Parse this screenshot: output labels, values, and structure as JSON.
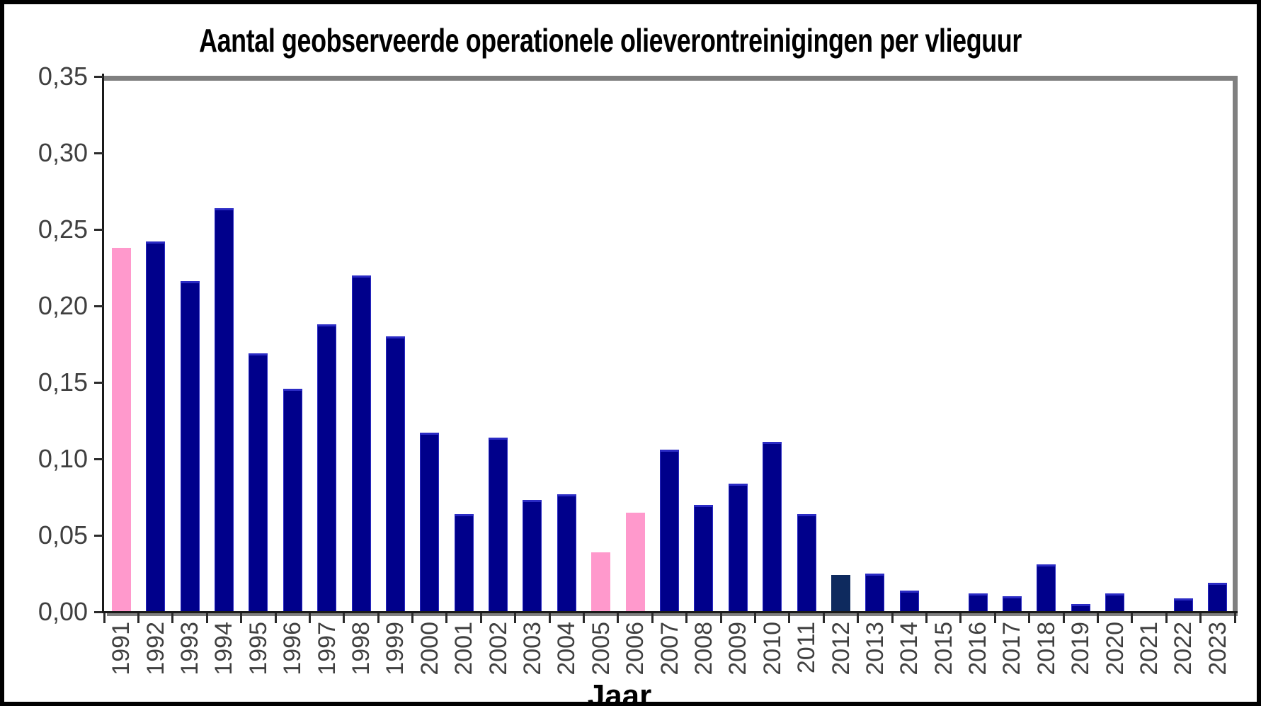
{
  "chart": {
    "title": "Aantal geobserveerde operationele olieverontreinigingen per vlieguur"
  },
  "chart_data": {
    "type": "bar",
    "title": "Aantal geobserveerde operationele olieverontreinigingen per vlieguur",
    "xlabel": "Jaar",
    "ylabel": "",
    "ylim": [
      0,
      0.35
    ],
    "grid": "top-border-only",
    "legend": "none",
    "y_ticks": [
      {
        "label": "0,35",
        "value": 0.35
      },
      {
        "label": "0,30",
        "value": 0.3
      },
      {
        "label": "0,25",
        "value": 0.25
      },
      {
        "label": "0,20",
        "value": 0.2
      },
      {
        "label": "0,15",
        "value": 0.15
      },
      {
        "label": "0,10",
        "value": 0.1
      },
      {
        "label": "0,05",
        "value": 0.05
      },
      {
        "label": "0,00",
        "value": 0.0
      }
    ],
    "categories": [
      "1991",
      "1992",
      "1993",
      "1994",
      "1995",
      "1996",
      "1997",
      "1998",
      "1999",
      "2000",
      "2001",
      "2002",
      "2003",
      "2004",
      "2005",
      "2006",
      "2007",
      "2008",
      "2009",
      "2010",
      "2011",
      "2012",
      "2013",
      "2014",
      "2015",
      "2016",
      "2017",
      "2018",
      "2019",
      "2020",
      "2021",
      "2022",
      "2023"
    ],
    "values": [
      0.238,
      0.242,
      0.216,
      0.264,
      0.169,
      0.146,
      0.188,
      0.22,
      0.18,
      0.117,
      0.064,
      0.114,
      0.073,
      0.077,
      0.039,
      0.065,
      0.106,
      0.07,
      0.084,
      0.111,
      0.064,
      0.024,
      0.025,
      0.014,
      0.0,
      0.012,
      0.01,
      0.031,
      0.005,
      0.012,
      0.0,
      0.009,
      0.019
    ],
    "colors": {
      "default_bar": "#00008B",
      "highlight_pink": "#FF99CC",
      "highlight_dark": "#0E2A5E",
      "axis_gray": "#808080",
      "label_gray": "#404040"
    },
    "pink_years": [
      "1991",
      "2005",
      "2006"
    ],
    "dark_years": [
      "2012"
    ]
  }
}
